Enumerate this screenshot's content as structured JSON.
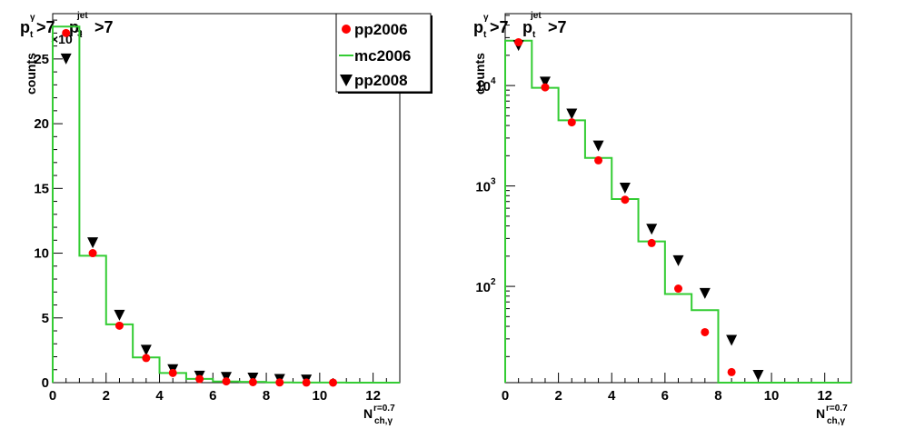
{
  "chart_data": [
    {
      "type": "histogram-with-markers",
      "title": {
        "p": "p",
        "t1": "t",
        "gamma": "γ",
        "gt1": ">7",
        "p2": "p",
        "t2": "t",
        "jet": "jet",
        "gt2": ">7"
      },
      "ylabel": "counts",
      "exponent": {
        "base": "×10",
        "power": "3"
      },
      "xlabel": {
        "main": "N",
        "sub": "ch,γ",
        "sup": "r=0.7"
      },
      "xlim": [
        0,
        13
      ],
      "ylim": [
        0,
        28.5
      ],
      "yscale": "linear",
      "xticks": [
        0,
        2,
        4,
        6,
        8,
        10,
        12
      ],
      "xtick_labels": [
        "0",
        "2",
        "4",
        "6",
        "8",
        "10",
        "12"
      ],
      "yticks": [
        0,
        5,
        10,
        15,
        20,
        25
      ],
      "ytick_labels": [
        "0",
        "5",
        "10",
        "15",
        "20",
        "25"
      ],
      "series": [
        {
          "name": "pp2006",
          "marker": "circle",
          "color": "#ff0000",
          "x": [
            0.5,
            1.5,
            2.5,
            3.5,
            4.5,
            5.5,
            6.5,
            7.5,
            8.5,
            9.5,
            10.5
          ],
          "values": [
            27.0,
            10.0,
            4.4,
            1.9,
            0.75,
            0.28,
            0.1,
            0.035,
            0.014,
            0.005,
            0.002
          ]
        },
        {
          "name": "mc2006",
          "marker": "step",
          "color": "#33cc33",
          "edges": [
            0,
            1,
            2,
            3,
            4,
            5,
            6,
            7,
            8,
            9,
            10,
            11,
            12,
            13
          ],
          "values": [
            27.5,
            9.8,
            4.5,
            1.95,
            0.75,
            0.29,
            0.09,
            0.06,
            0.02,
            0.01,
            0.005,
            0.002,
            0.0
          ]
        },
        {
          "name": "pp2008",
          "marker": "triangle-down",
          "color": "#000000",
          "x": [
            0.5,
            1.5,
            2.5,
            3.5,
            4.5,
            5.5,
            6.5,
            7.5,
            8.5,
            9.5
          ],
          "values": [
            25.0,
            10.8,
            5.2,
            2.5,
            1.0,
            0.5,
            0.4,
            0.35,
            0.25,
            0.2
          ]
        }
      ]
    },
    {
      "type": "histogram-with-markers",
      "title": {
        "p": "p",
        "t1": "t",
        "gamma": "γ",
        "gt1": ">7",
        "p2": "p",
        "t2": "t",
        "jet": "jet",
        "gt2": ">7"
      },
      "ylabel": "counts",
      "xlabel": {
        "main": "N",
        "sub": "ch,γ",
        "sup": "r=0.7"
      },
      "xlim": [
        0,
        13
      ],
      "ylim": [
        11,
        52000
      ],
      "yscale": "log",
      "xticks": [
        0,
        2,
        4,
        6,
        8,
        10,
        12
      ],
      "xtick_labels": [
        "0",
        "2",
        "4",
        "6",
        "8",
        "10",
        "12"
      ],
      "ymajor": [
        {
          "v": 100,
          "base": "10",
          "pow": "2"
        },
        {
          "v": 1000,
          "base": "10",
          "pow": "3"
        },
        {
          "v": 10000,
          "base": "10",
          "pow": "4"
        }
      ],
      "series": [
        {
          "name": "pp2006",
          "marker": "circle",
          "color": "#ff0000",
          "x": [
            0.5,
            1.5,
            2.5,
            3.5,
            4.5,
            5.5,
            6.5,
            7.5,
            8.5
          ],
          "values": [
            27000,
            9600,
            4300,
            1800,
            730,
            270,
            95,
            35,
            14
          ]
        },
        {
          "name": "mc2006",
          "marker": "step",
          "color": "#33cc33",
          "edges": [
            0,
            1,
            2,
            3,
            4,
            5,
            6,
            7,
            8,
            9,
            10,
            11,
            12,
            13
          ],
          "values": [
            28000,
            9500,
            4500,
            1900,
            740,
            280,
            84,
            58,
            0,
            0,
            0,
            0,
            0
          ]
        },
        {
          "name": "pp2008",
          "marker": "triangle-down",
          "color": "#000000",
          "x": [
            0.5,
            1.5,
            2.5,
            3.5,
            4.5,
            5.5,
            6.5,
            7.5,
            8.5,
            9.5
          ],
          "values": [
            25000,
            10800,
            5200,
            2500,
            950,
            370,
            180,
            85,
            29,
            13
          ]
        }
      ]
    }
  ]
}
